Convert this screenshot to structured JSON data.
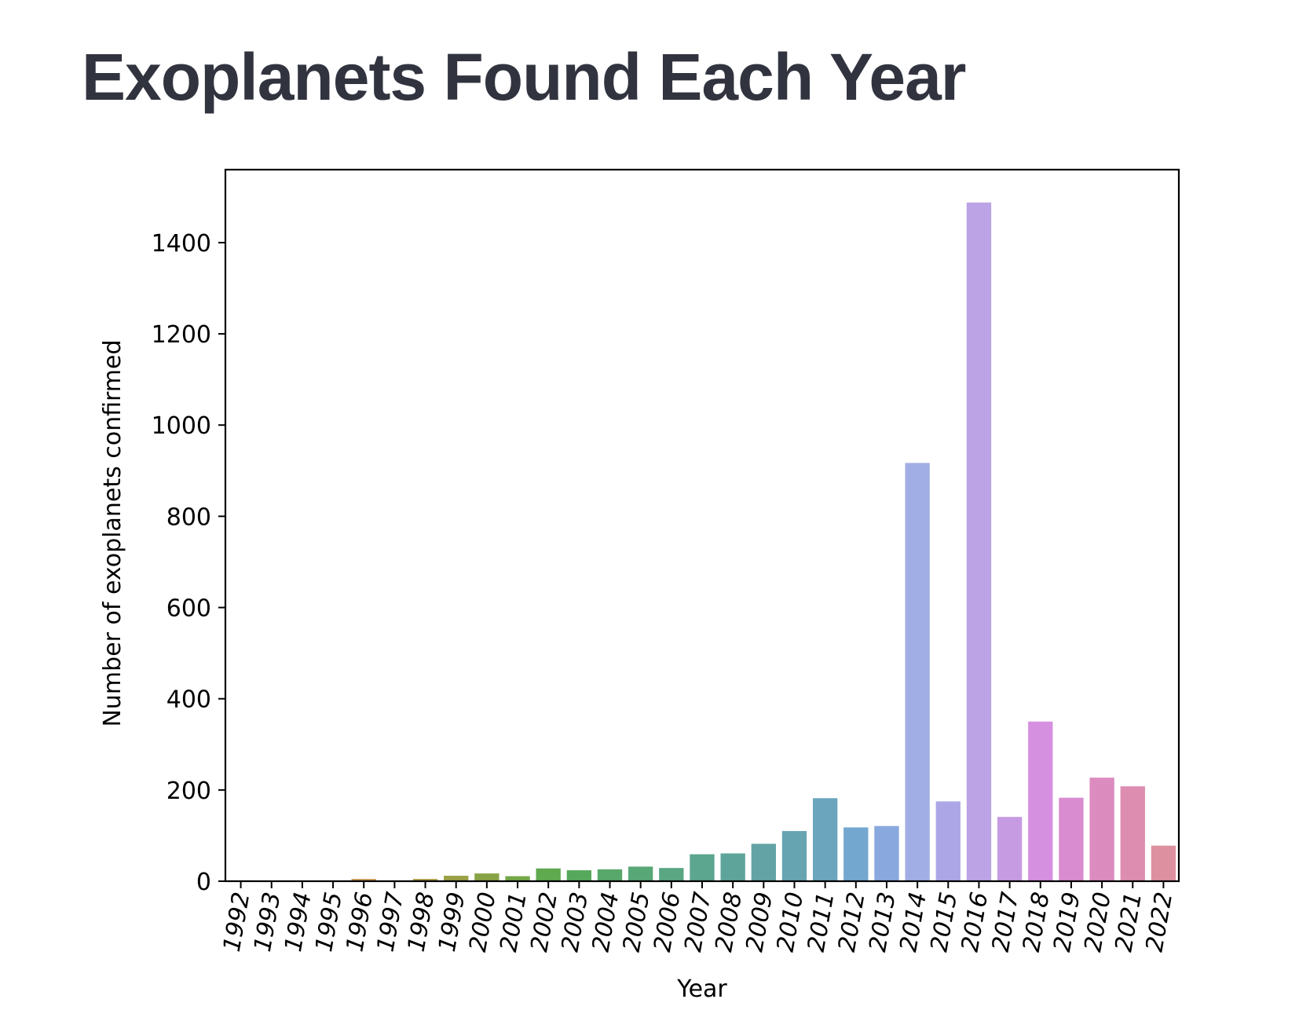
{
  "page": {
    "title": "Exoplanets Found Each Year"
  },
  "chart_data": {
    "type": "bar",
    "xlabel": "Year",
    "ylabel": "Number of exoplanets confirmed",
    "ylim": [
      0,
      1560
    ],
    "yticks": [
      0,
      200,
      400,
      600,
      800,
      1000,
      1200,
      1400
    ],
    "grid": false,
    "legend": "none",
    "categories": [
      "1992",
      "1993",
      "1994",
      "1995",
      "1996",
      "1997",
      "1998",
      "1999",
      "2000",
      "2001",
      "2002",
      "2003",
      "2004",
      "2005",
      "2006",
      "2007",
      "2008",
      "2009",
      "2010",
      "2011",
      "2012",
      "2013",
      "2014",
      "2015",
      "2016",
      "2017",
      "2018",
      "2019",
      "2020",
      "2021",
      "2022"
    ],
    "values": [
      2,
      1,
      1,
      1,
      5,
      1,
      5,
      12,
      17,
      11,
      28,
      24,
      26,
      32,
      29,
      59,
      61,
      82,
      110,
      182,
      118,
      121,
      917,
      175,
      1488,
      141,
      350,
      183,
      227,
      208,
      78
    ],
    "colors": [
      "#e88a8a",
      "#e48b7a",
      "#df8e6a",
      "#d5935c",
      "#c99955",
      "#bb9d4e",
      "#ab9f48",
      "#9aa146",
      "#88a346",
      "#74a748",
      "#5fa94f",
      "#56a95c",
      "#57a86a",
      "#58a777",
      "#5aa683",
      "#5ca58f",
      "#5fa49b",
      "#63a3a6",
      "#67a4b2",
      "#6aa5bd",
      "#74a7d0",
      "#89a8de",
      "#a1aee5",
      "#ada6e6",
      "#bca3e5",
      "#c69be2",
      "#d591e0",
      "#d98ccf",
      "#dc8bbf",
      "#dd8daf",
      "#dd91a0"
    ]
  }
}
